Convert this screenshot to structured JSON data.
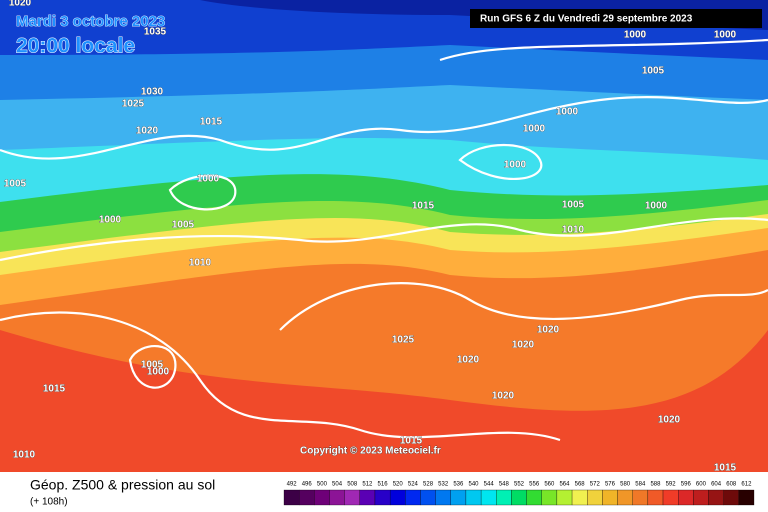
{
  "header": {
    "date": "Mardi 3 octobre 2023",
    "time": "20:00 locale",
    "run": "Run GFS 6 Z du Vendredi 29 septembre 2023"
  },
  "footer": {
    "title": "Géop. Z500 & pression au sol",
    "lead": "(+ 108h)",
    "copyright": "Copyright © 2023 Meteociel.fr"
  },
  "isobar_labels": [
    1020,
    1035,
    1030,
    1025,
    1020,
    1015,
    1005,
    1000,
    1000,
    1005,
    1010,
    1000,
    1000,
    1005,
    1000,
    1000,
    1000,
    1015,
    1005,
    1000,
    1010,
    1020,
    1025,
    1020,
    1020,
    1005,
    1000,
    1015,
    1020,
    1015,
    1020,
    1010,
    1015
  ],
  "scale": {
    "values": [
      492,
      496,
      500,
      504,
      508,
      512,
      516,
      520,
      524,
      528,
      532,
      536,
      540,
      544,
      548,
      552,
      556,
      560,
      564,
      568,
      572,
      576,
      580,
      584,
      588,
      592,
      596,
      600,
      604,
      608,
      612
    ],
    "colors": [
      "#3c0046",
      "#55005f",
      "#6e0078",
      "#8c1496",
      "#a028b4",
      "#5a00b4",
      "#2800c8",
      "#0000dc",
      "#0028f0",
      "#0050f0",
      "#0078f0",
      "#00a0f0",
      "#00c8f0",
      "#00e6f0",
      "#00f0b4",
      "#00dc64",
      "#32dc32",
      "#78e628",
      "#b4f032",
      "#f0f050",
      "#f0d23c",
      "#f0b428",
      "#f09628",
      "#f07828",
      "#f05a28",
      "#f03c28",
      "#dc2828",
      "#be1e1e",
      "#961414",
      "#6e0a0a",
      "#280000"
    ]
  }
}
